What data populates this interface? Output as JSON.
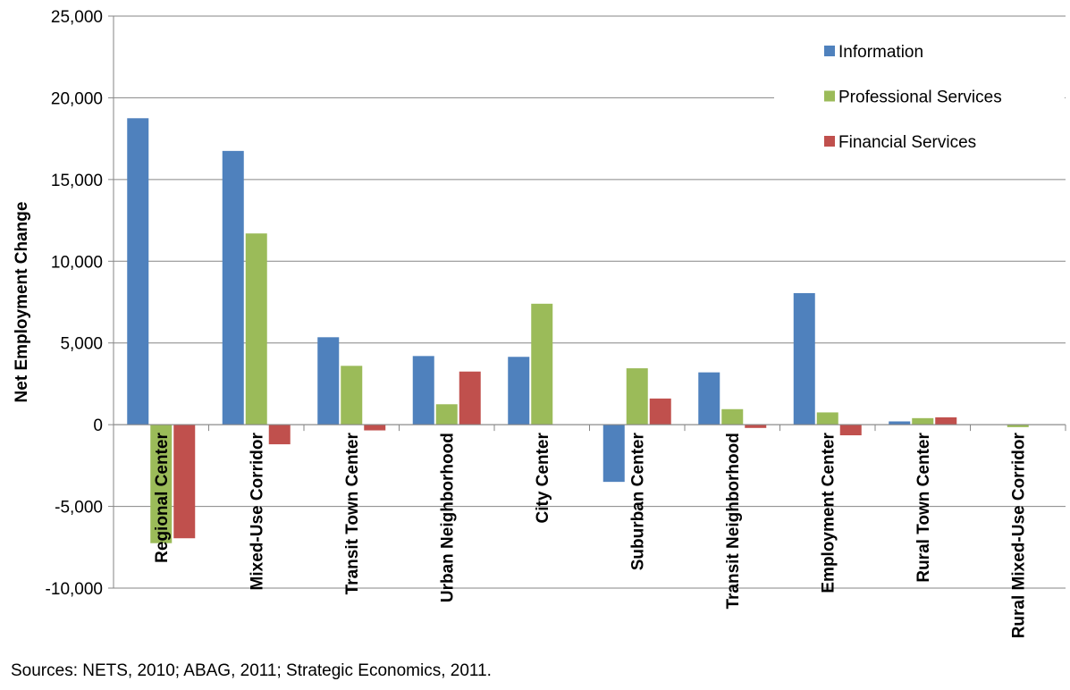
{
  "chart_data": {
    "type": "bar",
    "y_label": "Net Employment Change",
    "note": "Sources: NETS, 2010; ABAG, 2011; Strategic Economics, 2011.",
    "categories": [
      "Regional Center",
      "Mixed-Use Corridor",
      "Transit Town Center",
      "Urban Neighborhood",
      "City Center",
      "Suburban Center",
      "Transit Neighborhood",
      "Employment Center",
      "Rural Town Center",
      "Rural Mixed-Use Corridor"
    ],
    "series": [
      {
        "name": "Information",
        "color": "#4f81bd",
        "values": [
          18750,
          16750,
          5350,
          4200,
          4150,
          -3500,
          3200,
          8050,
          200,
          0
        ]
      },
      {
        "name": "Professional Services",
        "color": "#9bbb59",
        "values": [
          -7250,
          11700,
          3600,
          1250,
          7400,
          3450,
          950,
          750,
          400,
          -150
        ]
      },
      {
        "name": "Financial Services",
        "color": "#c0504d",
        "values": [
          -6950,
          -1200,
          -350,
          3250,
          0,
          1600,
          -200,
          -650,
          450,
          0
        ]
      }
    ],
    "ylim": [
      -10000,
      25000
    ],
    "yticks": [
      {
        "value": -10000,
        "label": "-10,000"
      },
      {
        "value": -5000,
        "label": "-5,000"
      },
      0,
      {
        "value": 5000,
        "label": "5,000"
      },
      {
        "value": 10000,
        "label": "10,000"
      },
      {
        "value": 15000,
        "label": "15,000"
      },
      {
        "value": 20000,
        "label": "20,000"
      },
      {
        "value": 25000,
        "label": "25,000"
      }
    ],
    "grid": true,
    "legend": "top-right"
  }
}
